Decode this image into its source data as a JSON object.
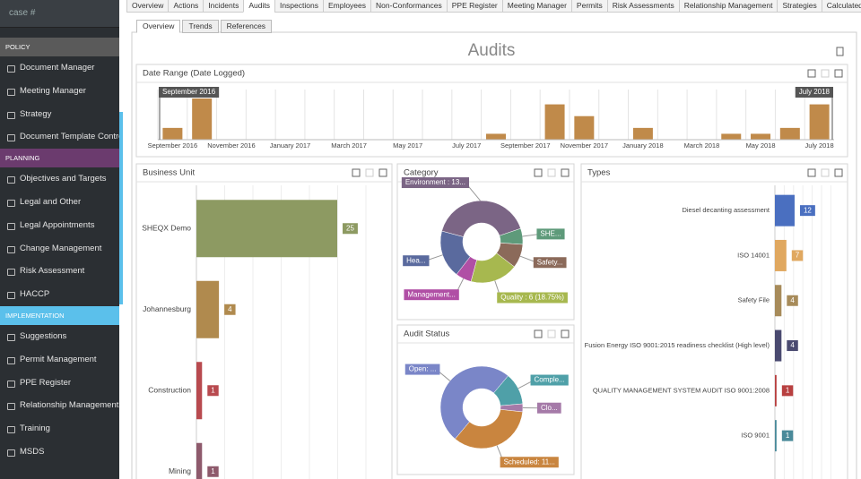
{
  "search_placeholder": "case #",
  "sidebar": [
    {
      "section": "POLICY",
      "items": [
        "Document Manager",
        "Meeting Manager",
        "Strategy",
        "Document Template Control"
      ]
    },
    {
      "section": "PLANNING",
      "items": [
        "Objectives and Targets",
        "Legal and Other",
        "Legal Appointments",
        "Change Management",
        "Risk Assessment",
        "HACCP"
      ]
    },
    {
      "section": "IMPLEMENTATION",
      "items": [
        "Suggestions",
        "Permit Management",
        "PPE Register",
        "Relationship Management",
        "Training",
        "MSDS"
      ]
    }
  ],
  "tabs": [
    "Overview",
    "Actions",
    "Incidents",
    "Audits",
    "Inspections",
    "Employees",
    "Non-Conformances",
    "PPE Register",
    "Meeting Manager",
    "Permits",
    "Risk Assessments",
    "Relationship Management",
    "Strategies",
    "Calculated Reporti"
  ],
  "subtabs": [
    "Overview",
    "Trends",
    "References"
  ],
  "page_title": "Audits",
  "chart_data": [
    {
      "type": "bar",
      "title": "Date Range (Date Logged)",
      "categories": [
        "September 2016",
        null,
        "November 2016",
        null,
        "January 2017",
        null,
        "March 2017",
        null,
        "May 2017",
        null,
        "July 2017",
        null,
        "September 2017",
        null,
        "November 2017",
        null,
        "January 2018",
        null,
        "March 2018",
        null,
        "May 2018",
        null,
        "July 2018"
      ],
      "values": [
        2,
        7,
        0,
        0,
        0,
        0,
        0,
        0,
        0,
        0,
        0,
        1,
        0,
        6,
        4,
        0,
        2,
        0,
        0,
        1,
        1,
        2,
        6
      ],
      "color": "#c08a4a",
      "range_start": "September 2016",
      "range_end": "July 2018"
    },
    {
      "type": "hbar",
      "title": "Business Unit",
      "categories": [
        "SHEQX Demo",
        "Johannesburg",
        "Construction",
        "Mining"
      ],
      "values": [
        25,
        4,
        1,
        1
      ],
      "colors": [
        "#8d9a62",
        "#b08a4e",
        "#b84a4f",
        "#8e5a6c"
      ]
    },
    {
      "type": "donut",
      "title": "Category",
      "labels": [
        "Environment : 13...",
        "SHE...",
        "Safety...",
        "Quality : 6 (18.75%)",
        "Management...",
        "Hea..."
      ],
      "values": [
        13,
        2,
        3,
        6,
        2,
        6
      ],
      "colors": [
        "#7b6585",
        "#5e9a7a",
        "#8b6a5a",
        "#a7b84f",
        "#b04fa5",
        "#5a6a9e"
      ]
    },
    {
      "type": "donut",
      "title": "Audit Status",
      "labels": [
        "Open: ...",
        "Comple...",
        "Clo...",
        "Scheduled: 11..."
      ],
      "values": [
        16,
        4,
        1,
        11
      ],
      "colors": [
        "#7a86c8",
        "#4fa0a8",
        "#a57aa8",
        "#c9853f"
      ]
    },
    {
      "type": "hbar",
      "title": "Types",
      "categories": [
        "Diesel decanting assessment",
        "ISO 14001",
        "Safety File",
        "Fusion Energy ISO 9001:2015 readiness checklist (High level)",
        "QUALITY MANAGEMENT SYSTEM AUDIT ISO 9001:2008",
        "ISO 9001"
      ],
      "values": [
        12,
        7,
        4,
        4,
        1,
        1
      ],
      "colors": [
        "#4a6fc0",
        "#e0a860",
        "#a78b5a",
        "#4a4a70",
        "#b84040",
        "#4a8a9a"
      ]
    }
  ]
}
